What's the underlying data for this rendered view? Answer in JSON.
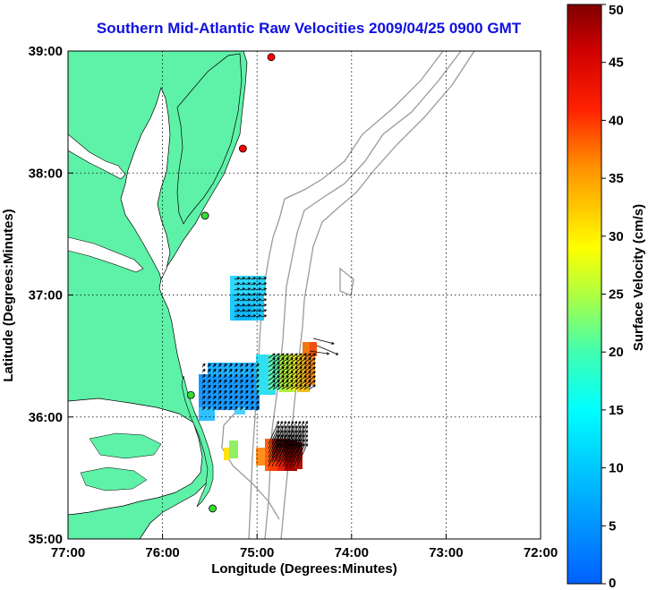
{
  "title": "Southern Mid-Atlantic Raw Velocities 2009/04/25 0900 GMT",
  "map": {
    "xlabel": "Longitude (Degrees:Minutes)",
    "ylabel": "Latitude (Degrees:Minutes)",
    "x_ticks": [
      "77:00",
      "76:00",
      "75:00",
      "74:00",
      "73:00",
      "72:00"
    ],
    "y_ticks": [
      "39:00",
      "38:00",
      "37:00",
      "36:00",
      "35:00"
    ],
    "lon_range": [
      -77,
      -72
    ],
    "lat_range": [
      35,
      39
    ],
    "grid": "dotted",
    "colors": {
      "land": "#5ef2a8",
      "water": "#ffffff",
      "bathymetry": "#9a9a9a",
      "grid": "#000000"
    }
  },
  "colorbar": {
    "label": "Surface Velocity (cm/s)",
    "ticks": [
      "0",
      "5",
      "10",
      "15",
      "20",
      "25",
      "30",
      "35",
      "40",
      "45",
      "50"
    ],
    "range": [
      0,
      50
    ]
  },
  "stations": [
    {
      "lon": -74.85,
      "lat": 38.95,
      "color": "#ff0000"
    },
    {
      "lon": -75.15,
      "lat": 38.2,
      "color": "#ff0000"
    },
    {
      "lon": -75.55,
      "lat": 37.65,
      "color": "#33dd33"
    },
    {
      "lon": -75.7,
      "lat": 36.18,
      "color": "#33dd33"
    },
    {
      "lon": -75.47,
      "lat": 35.25,
      "color": "#33dd33"
    }
  ]
}
